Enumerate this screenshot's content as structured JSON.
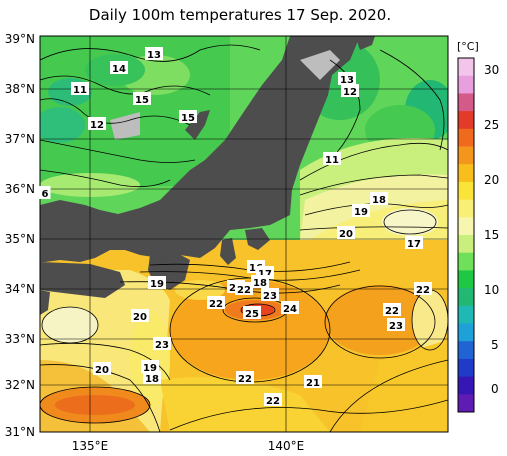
{
  "title": "Daily 100m temperatures 17 Sep. 2020.",
  "unit": "[°C]",
  "lat_labels": [
    "39°N",
    "38°N",
    "37°N",
    "36°N",
    "35°N",
    "34°N",
    "33°N",
    "32°N",
    "31°N"
  ],
  "lon_labels": [
    "135°E",
    "140°E"
  ],
  "colorbar": {
    "ticks": [
      "30",
      "25",
      "20",
      "15",
      "10",
      "5",
      "0"
    ],
    "colors": [
      "#f3c5ea",
      "#e7a0dd",
      "#d45a8a",
      "#e33b2a",
      "#f06a1e",
      "#f4961b",
      "#f8be1c",
      "#fbe43a",
      "#f9ef74",
      "#f7f6b0",
      "#c9ef7c",
      "#6fe05a",
      "#1fc844",
      "#22b873",
      "#20b8b4",
      "#1ea1d8",
      "#2064d4",
      "#1f3bc8",
      "#3617b4",
      "#5f1cb4"
    ]
  },
  "isotherm_labels": [
    {
      "text": "13"
    },
    {
      "text": "14"
    },
    {
      "text": "11"
    },
    {
      "text": "15"
    },
    {
      "text": "12"
    },
    {
      "text": "15"
    },
    {
      "text": "6"
    },
    {
      "text": "13"
    },
    {
      "text": "12"
    },
    {
      "text": "11"
    },
    {
      "text": "18"
    },
    {
      "text": "19"
    },
    {
      "text": "20"
    },
    {
      "text": "17"
    },
    {
      "text": "16"
    },
    {
      "text": "17"
    },
    {
      "text": "18"
    },
    {
      "text": "19"
    },
    {
      "text": "21"
    },
    {
      "text": "22"
    },
    {
      "text": "23"
    },
    {
      "text": "22"
    },
    {
      "text": "25"
    },
    {
      "text": "24"
    },
    {
      "text": "22"
    },
    {
      "text": "22"
    },
    {
      "text": "23"
    },
    {
      "text": "20"
    },
    {
      "text": "23"
    },
    {
      "text": "19"
    },
    {
      "text": "18"
    },
    {
      "text": "20"
    },
    {
      "text": "22"
    },
    {
      "text": "21"
    },
    {
      "text": "22"
    }
  ],
  "colors": {
    "land": "#4d4d4d",
    "grid": "#000000"
  }
}
